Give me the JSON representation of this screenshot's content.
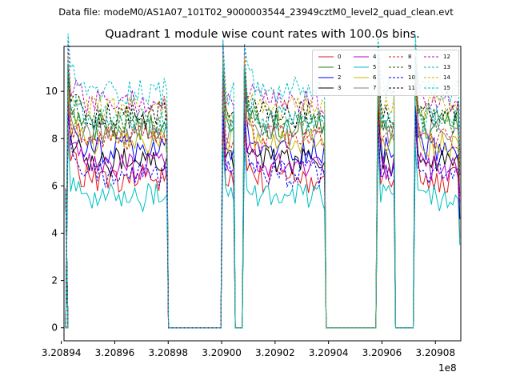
{
  "figure": {
    "suptitle": "Data file: modeM0/AS1A07_101T02_9000003544_23949cztM0_level2_quad_clean.evt",
    "title": "Quadrant 1 module wise count rates with 100.0s bins.",
    "x_offset_label": "1e8"
  },
  "chart_data": {
    "type": "line",
    "title": "Quadrant 1 module wise count rates with 100.0s bins.",
    "xlabel": "",
    "ylabel": "",
    "x_scale_offset": "1e8",
    "xlim": [
      3.208941,
      3.2090895
    ],
    "ylim": [
      -0.55,
      11.9
    ],
    "x_ticks": [
      3.20894,
      3.20896,
      3.20898,
      3.209,
      3.20902,
      3.20904,
      3.20906,
      3.20908
    ],
    "x_tick_labels": [
      "3.20894",
      "3.20896",
      "3.20898",
      "3.20900",
      "3.20902",
      "3.20904",
      "3.20906",
      "3.20908"
    ],
    "y_ticks": [
      0,
      2,
      4,
      6,
      8,
      10
    ],
    "y_tick_labels": [
      "0",
      "2",
      "4",
      "6",
      "8",
      "10"
    ],
    "grid": false,
    "legend_position": "upper right",
    "segments": [
      {
        "start": 3.2089425,
        "end": 3.2089795
      },
      {
        "start": 3.2090005,
        "end": 3.2090045
      },
      {
        "start": 3.2090085,
        "end": 3.2090385
      },
      {
        "start": 3.2090585,
        "end": 3.2090645
      },
      {
        "start": 3.2090725,
        "end": 3.2090885
      }
    ],
    "series": [
      {
        "name": "0",
        "color": "#e41a1c",
        "dash": "solid",
        "level": 6.3
      },
      {
        "name": "1",
        "color": "#1a8a1a",
        "dash": "solid",
        "level": 8.5
      },
      {
        "name": "2",
        "color": "#0000ff",
        "dash": "solid",
        "level": 7.5
      },
      {
        "name": "3",
        "color": "#000000",
        "dash": "solid",
        "level": 7.0
      },
      {
        "name": "4",
        "color": "#bf00bf",
        "dash": "solid",
        "level": 6.8
      },
      {
        "name": "5",
        "color": "#00bfbf",
        "dash": "solid",
        "level": 5.5
      },
      {
        "name": "6",
        "color": "#c8b400",
        "dash": "solid",
        "level": 7.8
      },
      {
        "name": "7",
        "color": "#808080",
        "dash": "solid",
        "level": 8.2
      },
      {
        "name": "8",
        "color": "#e41a1c",
        "dash": "dashed",
        "level": 8.0
      },
      {
        "name": "9",
        "color": "#1a6a1a",
        "dash": "dashed",
        "level": 8.7
      },
      {
        "name": "10",
        "color": "#0000ff",
        "dash": "dashed",
        "level": 6.5
      },
      {
        "name": "11",
        "color": "#000000",
        "dash": "dashed",
        "level": 9.0
      },
      {
        "name": "12",
        "color": "#bf00bf",
        "dash": "dashed",
        "level": 9.5
      },
      {
        "name": "13",
        "color": "#00bfbf",
        "dash": "dashed",
        "level": 10.0
      },
      {
        "name": "14",
        "color": "#c8b400",
        "dash": "dashed",
        "level": 9.2
      },
      {
        "name": "15",
        "color": "#00bfbf",
        "dash": "dashed",
        "level": 8.8
      }
    ]
  }
}
